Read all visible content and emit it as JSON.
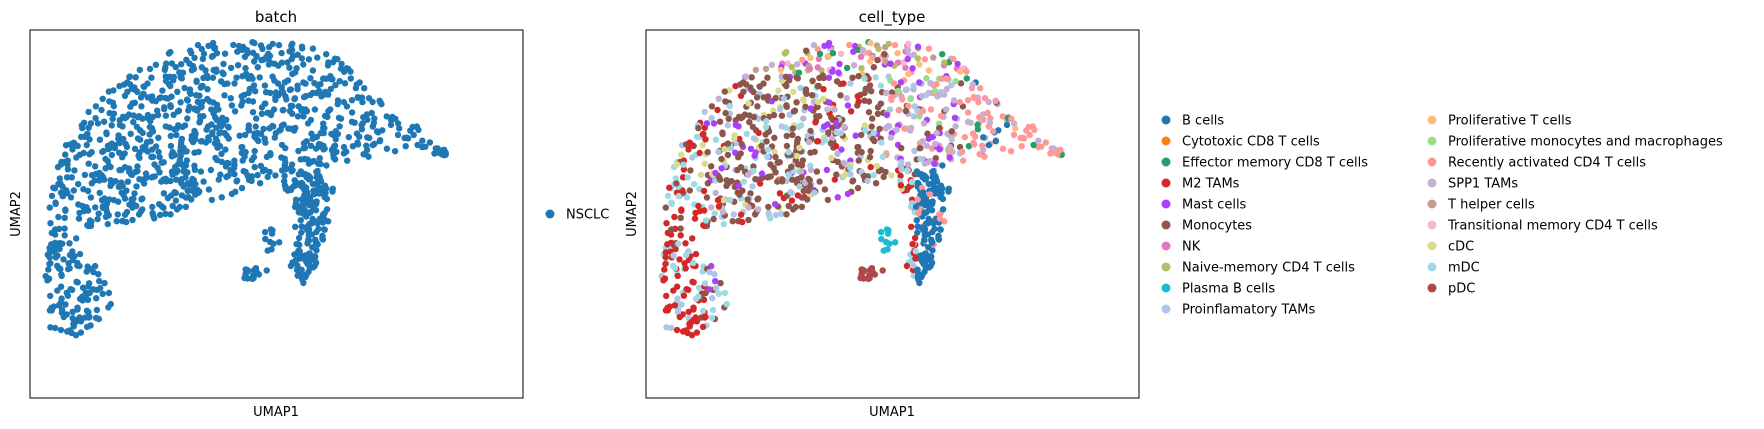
{
  "chart_data": [
    {
      "type": "scatter",
      "title": "batch",
      "xlabel": "UMAP1",
      "ylabel": "UMAP2",
      "grid": false,
      "legend": {
        "placement": "right",
        "entries": [
          {
            "name": "NSCLC",
            "color": "#1f77b4"
          }
        ]
      }
    },
    {
      "type": "scatter",
      "title": "cell_type",
      "xlabel": "UMAP1",
      "ylabel": "UMAP2",
      "grid": false,
      "legend": {
        "placement": "right",
        "entries": [
          {
            "name": "B cells",
            "color": "#1f77b4"
          },
          {
            "name": "Cytotoxic CD8 T cells",
            "color": "#ff7f0e"
          },
          {
            "name": "Effector memory CD8 T cells",
            "color": "#279e68"
          },
          {
            "name": "M2 TAMs",
            "color": "#d62728"
          },
          {
            "name": "Mast cells",
            "color": "#aa40fc"
          },
          {
            "name": "Monocytes",
            "color": "#8c564b"
          },
          {
            "name": "NK",
            "color": "#e377c2"
          },
          {
            "name": "Naive-memory CD4 T cells",
            "color": "#b5bd61"
          },
          {
            "name": "Plasma B cells",
            "color": "#17becf"
          },
          {
            "name": "Proinflamatory TAMs",
            "color": "#aec7e8"
          },
          {
            "name": "Proliferative T cells",
            "color": "#ffbb78"
          },
          {
            "name": "Proliferative monocytes and macrophages",
            "color": "#98df8a"
          },
          {
            "name": "Recently activated CD4 T cells",
            "color": "#ff9896"
          },
          {
            "name": "SPP1 TAMs",
            "color": "#c5b0d5"
          },
          {
            "name": "T helper cells",
            "color": "#c49c94"
          },
          {
            "name": "Transitional memory CD4 T cells",
            "color": "#f7b6d2"
          },
          {
            "name": "cDC",
            "color": "#dbdb8d"
          },
          {
            "name": "mDC",
            "color": "#9edae5"
          },
          {
            "name": "pDC",
            "color": "#ad494a"
          }
        ]
      }
    }
  ]
}
